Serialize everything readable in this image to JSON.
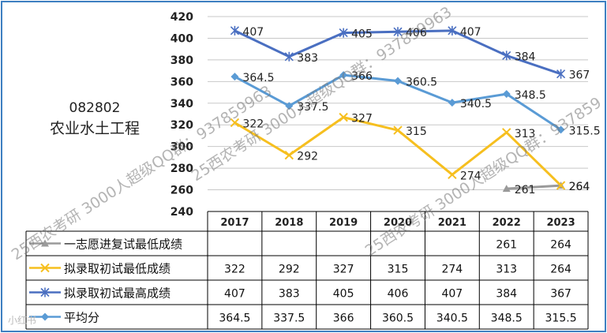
{
  "title": {
    "code": "082802",
    "name": "农业水土工程"
  },
  "colors": {
    "border": "#3d7fc1",
    "grid": "#c8c8c8",
    "series": [
      "#9a9a9a",
      "#f6bf1f",
      "#4a6fc1",
      "#5a9bd5"
    ]
  },
  "chart_data": {
    "type": "line",
    "categories": [
      "2017",
      "2018",
      "2019",
      "2020",
      "2021",
      "2022",
      "2023"
    ],
    "ylim": [
      240,
      420
    ],
    "yticks": [
      "240",
      "260",
      "280",
      "300",
      "320",
      "340",
      "360",
      "380",
      "400",
      "420"
    ],
    "grid": true,
    "legend": "table-left",
    "series": [
      {
        "name": "一志愿进复试最低成绩",
        "values": [
          null,
          null,
          null,
          null,
          null,
          261,
          264
        ],
        "labels": [
          "",
          "",
          "",
          "",
          "",
          "261",
          "264"
        ],
        "marker": "triangle"
      },
      {
        "name": "拟录取初试最低成绩",
        "values": [
          322,
          292,
          327,
          315,
          274,
          313,
          264
        ],
        "labels": [
          "322",
          "292",
          "327",
          "315",
          "274",
          "313",
          "264"
        ],
        "marker": "x"
      },
      {
        "name": "拟录取初试最高成绩",
        "values": [
          407,
          383,
          405,
          406,
          407,
          384,
          367
        ],
        "labels": [
          "407",
          "383",
          "405",
          "406",
          "407",
          "384",
          "367"
        ],
        "marker": "star"
      },
      {
        "name": "平均分",
        "values": [
          364.5,
          337.5,
          366,
          360.5,
          340.5,
          348.5,
          315.5
        ],
        "labels": [
          "364.5",
          "337.5",
          "366",
          "360.5",
          "340.5",
          "348.5",
          "315.5"
        ],
        "marker": "diamond"
      }
    ]
  },
  "watermarks": [
    "25西农考研 3000人超级QQ群：937859963",
    "25西农考研 3000人超级QQ群：937859",
    "25西农考研 3000人超级QQ群：937859963"
  ],
  "footer_logo": "小红书"
}
